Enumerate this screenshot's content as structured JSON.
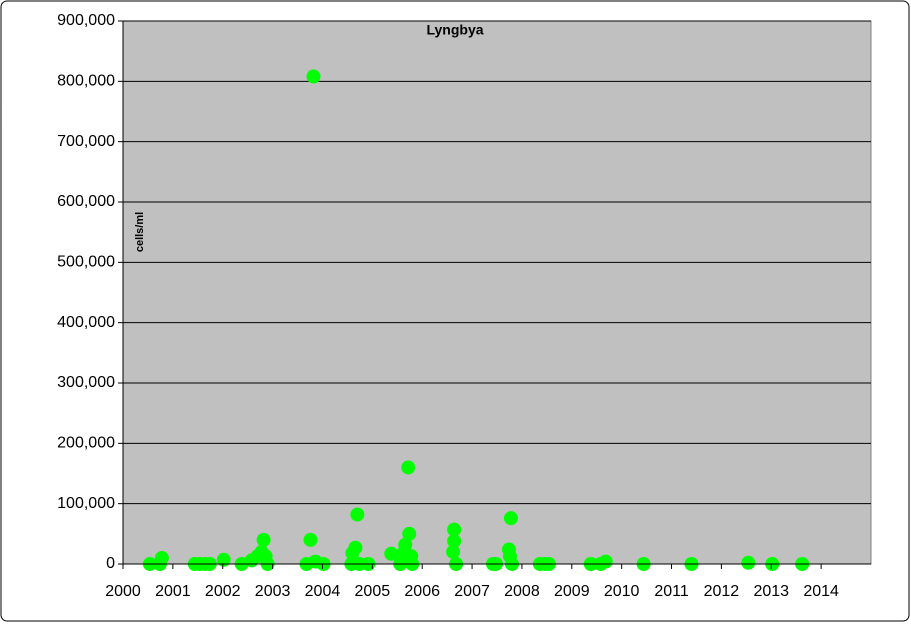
{
  "chart_data": {
    "type": "scatter",
    "title": "Lyngbya",
    "y_label": "cells/ml",
    "x": [
      2000.54,
      2000.74,
      2000.78,
      2001.44,
      2001.54,
      2001.64,
      2001.74,
      2002.02,
      2002.38,
      2002.58,
      2002.7,
      2002.78,
      2002.82,
      2002.86,
      2002.9,
      2003.68,
      2003.76,
      2003.82,
      2003.86,
      2004.02,
      2004.58,
      2004.6,
      2004.66,
      2004.7,
      2004.74,
      2004.92,
      2005.38,
      2005.56,
      2005.62,
      2005.66,
      2005.72,
      2005.74,
      2005.78,
      2005.8,
      2006.62,
      2006.64,
      2006.64,
      2006.68,
      2007.42,
      2007.48,
      2007.74,
      2007.76,
      2007.78,
      2007.8,
      2008.36,
      2008.46,
      2008.54,
      2009.38,
      2009.58,
      2009.68,
      2010.44,
      2011.4,
      2012.54,
      2013.02,
      2013.62
    ],
    "values": [
      0,
      0,
      10000,
      0,
      0,
      0,
      0,
      7000,
      0,
      6000,
      13000,
      20000,
      40000,
      13000,
      0,
      0,
      40000,
      808000,
      4000,
      0,
      0,
      18000,
      27000,
      82000,
      0,
      0,
      17000,
      0,
      18000,
      32000,
      160000,
      50000,
      13000,
      0,
      20000,
      38000,
      57000,
      0,
      0,
      0,
      24000,
      13000,
      76000,
      0,
      0,
      0,
      0,
      0,
      0,
      4000,
      0,
      0,
      2000,
      0,
      0
    ],
    "color": "#00ff00",
    "xlim": [
      2000,
      2015
    ],
    "xticks": [
      2000,
      2001,
      2002,
      2003,
      2004,
      2005,
      2006,
      2007,
      2008,
      2009,
      2010,
      2011,
      2012,
      2013,
      2014
    ],
    "ylim": [
      0,
      900000
    ],
    "yticks": [
      0,
      {
        "value": 100000,
        "label": "100,000"
      },
      {
        "value": 200000,
        "label": "200,000"
      },
      {
        "value": 300000,
        "label": "300,000"
      },
      {
        "value": 400000,
        "label": "400,000"
      },
      {
        "value": 500000,
        "label": "500,000"
      },
      {
        "value": 600000,
        "label": "600,000"
      },
      {
        "value": 700000,
        "label": "700,000"
      },
      {
        "value": 800000,
        "label": "800,000"
      },
      {
        "value": 900000,
        "label": "900,000"
      }
    ],
    "grid": true
  }
}
